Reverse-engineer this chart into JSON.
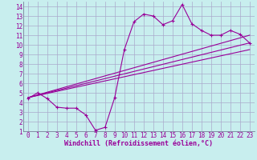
{
  "xlabel": "Windchill (Refroidissement éolien,°C)",
  "xlim": [
    -0.5,
    23.5
  ],
  "ylim": [
    1,
    14.5
  ],
  "xticks": [
    0,
    1,
    2,
    3,
    4,
    5,
    6,
    7,
    8,
    9,
    10,
    11,
    12,
    13,
    14,
    15,
    16,
    17,
    18,
    19,
    20,
    21,
    22,
    23
  ],
  "yticks": [
    1,
    2,
    3,
    4,
    5,
    6,
    7,
    8,
    9,
    10,
    11,
    12,
    13,
    14
  ],
  "main_x": [
    0,
    1,
    2,
    3,
    4,
    5,
    6,
    7,
    8,
    9,
    10,
    11,
    12,
    13,
    14,
    15,
    16,
    17,
    18,
    19,
    20,
    21,
    22,
    23
  ],
  "main_y": [
    4.4,
    5.0,
    4.4,
    3.5,
    3.4,
    3.4,
    2.7,
    1.1,
    1.4,
    4.5,
    9.5,
    12.4,
    13.2,
    13.0,
    12.1,
    12.5,
    14.2,
    12.2,
    11.5,
    11.0,
    11.0,
    11.5,
    11.1,
    10.2
  ],
  "line1_x": [
    0,
    23
  ],
  "line1_y": [
    4.5,
    11.0
  ],
  "line2_x": [
    0,
    23
  ],
  "line2_y": [
    4.5,
    10.2
  ],
  "line3_x": [
    0,
    23
  ],
  "line3_y": [
    4.5,
    9.5
  ],
  "bg_color": "#c8eeee",
  "line_color": "#990099",
  "grid_color": "#aaaacc",
  "tick_label_color": "#990099",
  "xlabel_color": "#990099",
  "font_size": 5.5
}
